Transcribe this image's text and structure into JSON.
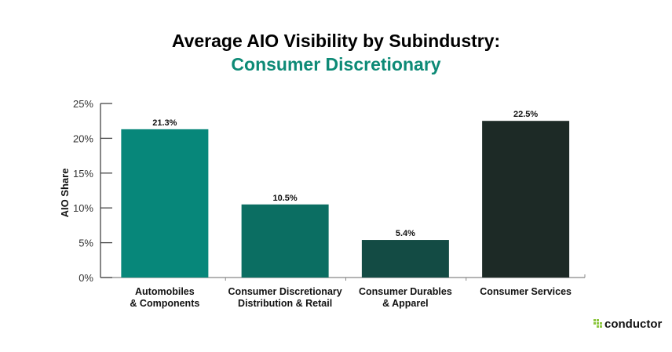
{
  "chart_data": {
    "type": "bar",
    "title": "Average AIO Visibility by Subindustry:",
    "subtitle": "Consumer Discretionary",
    "xlabel": "",
    "ylabel": "AIO Share",
    "ylim": [
      0,
      25
    ],
    "yticks": [
      "0%",
      "5%",
      "10%",
      "15%",
      "20%",
      "25%"
    ],
    "categories": [
      [
        "Automobiles",
        "& Components"
      ],
      [
        "Consumer Discretionary",
        "Distribution & Retail"
      ],
      [
        "Consumer Durables",
        "& Apparel"
      ],
      [
        "Consumer Services"
      ]
    ],
    "values": [
      21.3,
      10.5,
      5.4,
      22.5
    ],
    "data_labels": [
      "21.3%",
      "10.5%",
      "5.4%",
      "22.5%"
    ],
    "colors": [
      "#07877a",
      "#0b6e62",
      "#134b44",
      "#1d2a26"
    ],
    "grid": false,
    "legend": "none"
  },
  "colors": {
    "title": "#000000",
    "subtitle": "#0d8a76"
  },
  "brand": {
    "logo_text": "conductor",
    "logo_color": "#8cc63f"
  }
}
